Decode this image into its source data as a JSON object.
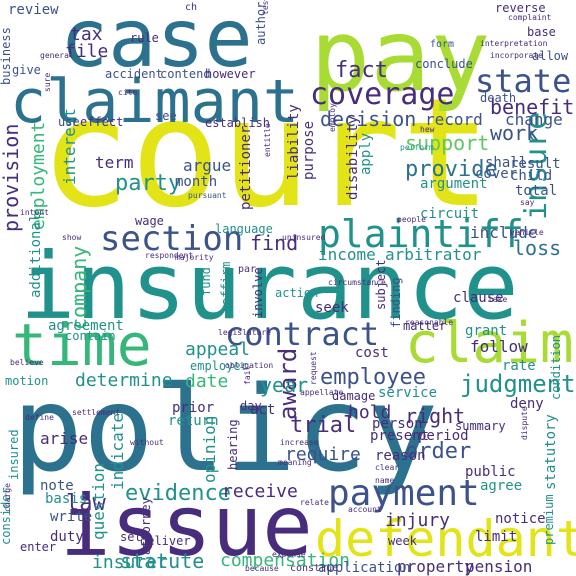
{
  "word_cloud": {
    "palette": {
      "yellow": "#e3e418",
      "lime": "#a8db34",
      "green": "#5ec962",
      "mint": "#35b779",
      "teal": "#21918c",
      "steelblue": "#2c728e",
      "blue": "#3b528b",
      "indigo": "#472d7b",
      "purple": "#440154"
    },
    "words": [
      {
        "text": "court",
        "color": "yellow"
      },
      {
        "text": "policy",
        "color": "steelblue"
      },
      {
        "text": "insurance",
        "color": "teal"
      },
      {
        "text": "case",
        "color": "steelblue"
      },
      {
        "text": "pay",
        "color": "lime"
      },
      {
        "text": "issue",
        "color": "indigo"
      },
      {
        "text": "claimant",
        "color": "steelblue"
      },
      {
        "text": "time",
        "color": "mint"
      },
      {
        "text": "claim",
        "color": "lime"
      },
      {
        "text": "defendant",
        "color": "yellow"
      },
      {
        "text": "payment",
        "color": "blue"
      },
      {
        "text": "plaintiff",
        "color": "teal"
      },
      {
        "text": "coverage",
        "color": "indigo"
      },
      {
        "text": "section",
        "color": "blue"
      },
      {
        "text": "contract",
        "color": "blue"
      },
      {
        "text": "state",
        "color": "blue"
      },
      {
        "text": "judgment",
        "color": "teal"
      },
      {
        "text": "employee",
        "color": "blue"
      },
      {
        "text": "insure",
        "color": "teal"
      },
      {
        "text": "fact",
        "color": "indigo"
      },
      {
        "text": "decision",
        "color": "blue"
      },
      {
        "text": "benefit",
        "color": "indigo"
      },
      {
        "text": "work",
        "color": "blue"
      },
      {
        "text": "provide",
        "color": "steelblue"
      },
      {
        "text": "support",
        "color": "green"
      },
      {
        "text": "evidence",
        "color": "teal"
      },
      {
        "text": "order",
        "color": "blue"
      },
      {
        "text": "law",
        "color": "indigo"
      },
      {
        "text": "party",
        "color": "teal"
      },
      {
        "text": "tax",
        "color": "indigo"
      },
      {
        "text": "file",
        "color": "indigo"
      },
      {
        "text": "trial",
        "color": "indigo"
      },
      {
        "text": "find",
        "color": "indigo"
      },
      {
        "text": "award",
        "color": "indigo"
      },
      {
        "text": "statute",
        "color": "teal"
      },
      {
        "text": "compensation",
        "color": "mint"
      },
      {
        "text": "company",
        "color": "mint"
      },
      {
        "text": "employment",
        "color": "mint"
      },
      {
        "text": "provision",
        "color": "indigo"
      },
      {
        "text": "year",
        "color": "teal"
      },
      {
        "text": "require",
        "color": "blue"
      },
      {
        "text": "loss",
        "color": "steelblue"
      },
      {
        "text": "insurer",
        "color": "teal"
      },
      {
        "text": "appeal",
        "color": "teal"
      },
      {
        "text": "hold",
        "color": "indigo"
      },
      {
        "text": "right",
        "color": "indigo"
      },
      {
        "text": "receive",
        "color": "indigo"
      },
      {
        "text": "injury",
        "color": "indigo"
      },
      {
        "text": "determine",
        "color": "teal"
      },
      {
        "text": "income",
        "color": "teal"
      },
      {
        "text": "arbitrator",
        "color": "teal"
      },
      {
        "text": "include",
        "color": "blue"
      },
      {
        "text": "question",
        "color": "teal"
      },
      {
        "text": "indicate",
        "color": "teal"
      },
      {
        "text": "property",
        "color": "indigo"
      },
      {
        "text": "application",
        "color": "blue"
      },
      {
        "text": "pension",
        "color": "indigo"
      },
      {
        "text": "date",
        "color": "mint"
      },
      {
        "text": "opinion",
        "color": "teal"
      },
      {
        "text": "term",
        "color": "indigo"
      },
      {
        "text": "interest",
        "color": "teal"
      },
      {
        "text": "review",
        "color": "blue"
      },
      {
        "text": "business",
        "color": "blue"
      },
      {
        "text": "accident",
        "color": "blue"
      },
      {
        "text": "contend",
        "color": "blue"
      },
      {
        "text": "however",
        "color": "indigo"
      },
      {
        "text": "record",
        "color": "blue"
      },
      {
        "text": "change",
        "color": "blue"
      },
      {
        "text": "argue",
        "color": "blue"
      },
      {
        "text": "month",
        "color": "blue"
      },
      {
        "text": "petitioner",
        "color": "indigo"
      },
      {
        "text": "liability",
        "color": "indigo"
      },
      {
        "text": "purpose",
        "color": "indigo"
      },
      {
        "text": "apply",
        "color": "teal"
      },
      {
        "text": "argument",
        "color": "teal"
      },
      {
        "text": "disability",
        "color": "indigo"
      },
      {
        "text": "result",
        "color": "blue"
      },
      {
        "text": "child",
        "color": "blue"
      },
      {
        "text": "total",
        "color": "blue"
      },
      {
        "text": "cover",
        "color": "blue"
      },
      {
        "text": "shall",
        "color": "blue"
      },
      {
        "text": "circuit",
        "color": "teal"
      },
      {
        "text": "wage",
        "color": "indigo"
      },
      {
        "text": "language",
        "color": "teal"
      },
      {
        "text": "additional",
        "color": "teal"
      },
      {
        "text": "affirm",
        "color": "teal"
      },
      {
        "text": "fund",
        "color": "teal"
      },
      {
        "text": "involve",
        "color": "indigo"
      },
      {
        "text": "action",
        "color": "teal"
      },
      {
        "text": "seek",
        "color": "indigo"
      },
      {
        "text": "subject",
        "color": "indigo"
      },
      {
        "text": "finding",
        "color": "blue"
      },
      {
        "text": "clause",
        "color": "indigo"
      },
      {
        "text": "grant",
        "color": "teal"
      },
      {
        "text": "follow",
        "color": "indigo"
      },
      {
        "text": "matter",
        "color": "indigo"
      },
      {
        "text": "cost",
        "color": "indigo"
      },
      {
        "text": "rate",
        "color": "teal"
      },
      {
        "text": "condition",
        "color": "teal"
      },
      {
        "text": "agreement",
        "color": "teal"
      },
      {
        "text": "contain",
        "color": "teal"
      },
      {
        "text": "motion",
        "color": "teal"
      },
      {
        "text": "employer",
        "color": "teal"
      },
      {
        "text": "damage",
        "color": "indigo"
      },
      {
        "text": "service",
        "color": "teal"
      },
      {
        "text": "deny",
        "color": "indigo"
      },
      {
        "text": "prior",
        "color": "indigo"
      },
      {
        "text": "return",
        "color": "teal"
      },
      {
        "text": "act",
        "color": "indigo"
      },
      {
        "text": "present",
        "color": "indigo"
      },
      {
        "text": "reason",
        "color": "indigo"
      },
      {
        "text": "person",
        "color": "indigo"
      },
      {
        "text": "period",
        "color": "indigo"
      },
      {
        "text": "summary",
        "color": "indigo"
      },
      {
        "text": "statutory",
        "color": "teal"
      },
      {
        "text": "premium",
        "color": "teal"
      },
      {
        "text": "public",
        "color": "indigo"
      },
      {
        "text": "agree",
        "color": "teal"
      },
      {
        "text": "notice",
        "color": "indigo"
      },
      {
        "text": "limit",
        "color": "indigo"
      },
      {
        "text": "arise",
        "color": "indigo"
      },
      {
        "text": "insured",
        "color": "teal"
      },
      {
        "text": "note",
        "color": "blue"
      },
      {
        "text": "basis",
        "color": "teal"
      },
      {
        "text": "write",
        "color": "blue"
      },
      {
        "text": "duty",
        "color": "indigo"
      },
      {
        "text": "set",
        "color": "indigo"
      },
      {
        "text": "consider",
        "color": "teal"
      },
      {
        "text": "enter",
        "color": "indigo"
      },
      {
        "text": "deliver",
        "color": "indigo"
      },
      {
        "text": "attorney",
        "color": "indigo"
      },
      {
        "text": "day",
        "color": "indigo"
      },
      {
        "text": "hearing",
        "color": "indigo"
      },
      {
        "text": "week",
        "color": "indigo"
      },
      {
        "text": "reverse",
        "color": "indigo"
      },
      {
        "text": "base",
        "color": "indigo"
      },
      {
        "text": "allow",
        "color": "blue"
      },
      {
        "text": "form",
        "color": "blue"
      },
      {
        "text": "conclude",
        "color": "blue"
      },
      {
        "text": "death",
        "color": "blue"
      },
      {
        "text": "rule",
        "color": "indigo"
      },
      {
        "text": "give",
        "color": "blue"
      },
      {
        "text": "use",
        "color": "blue"
      },
      {
        "text": "effect",
        "color": "indigo"
      },
      {
        "text": "establish",
        "color": "indigo"
      },
      {
        "text": "see",
        "color": "blue"
      },
      {
        "text": "ch",
        "color": "indigo"
      },
      {
        "text": "authority",
        "color": "blue"
      },
      {
        "text": "interpretation",
        "color": "indigo"
      },
      {
        "text": "complaint",
        "color": "indigo"
      },
      {
        "text": "testify",
        "color": "indigo"
      },
      {
        "text": "entitle",
        "color": "indigo"
      },
      {
        "text": "pursuant",
        "color": "blue"
      },
      {
        "text": "respondent",
        "color": "indigo"
      },
      {
        "text": "majority",
        "color": "indigo"
      },
      {
        "text": "par",
        "color": "indigo"
      },
      {
        "text": "request",
        "color": "indigo"
      },
      {
        "text": "uninsured",
        "color": "indigo"
      },
      {
        "text": "construe",
        "color": "indigo"
      },
      {
        "text": "expense",
        "color": "indigo"
      },
      {
        "text": "account",
        "color": "indigo"
      },
      {
        "text": "vehicle",
        "color": "indigo"
      },
      {
        "text": "people",
        "color": "indigo"
      },
      {
        "text": "say",
        "color": "indigo"
      },
      {
        "text": "perform",
        "color": "teal"
      },
      {
        "text": "obligation",
        "color": "indigo"
      },
      {
        "text": "appellate",
        "color": "indigo"
      },
      {
        "text": "legislature",
        "color": "indigo"
      },
      {
        "text": "settlement",
        "color": "indigo"
      },
      {
        "text": "circumstance",
        "color": "indigo"
      },
      {
        "text": "show",
        "color": "indigo"
      },
      {
        "text": "believe",
        "color": "indigo"
      },
      {
        "text": "define",
        "color": "indigo"
      },
      {
        "text": "increase",
        "color": "indigo"
      },
      {
        "text": "meaning",
        "color": "indigo"
      },
      {
        "text": "relate",
        "color": "indigo"
      },
      {
        "text": "dispute",
        "color": "indigo"
      },
      {
        "text": "take",
        "color": "indigo"
      },
      {
        "text": "fail",
        "color": "indigo"
      },
      {
        "text": "reasonable",
        "color": "indigo"
      },
      {
        "text": "general",
        "color": "indigo"
      },
      {
        "text": "cite",
        "color": "indigo"
      },
      {
        "text": "hew",
        "color": "indigo"
      },
      {
        "text": "incorporate",
        "color": "indigo"
      },
      {
        "text": "charge",
        "color": "indigo"
      },
      {
        "text": "clear",
        "color": "indigo"
      },
      {
        "text": "name",
        "color": "indigo"
      },
      {
        "text": "because",
        "color": "indigo"
      },
      {
        "text": "sure",
        "color": "indigo"
      },
      {
        "text": "employ",
        "color": "indigo"
      },
      {
        "text": "intent",
        "color": "indigo"
      },
      {
        "text": "without",
        "color": "indigo"
      }
    ]
  }
}
